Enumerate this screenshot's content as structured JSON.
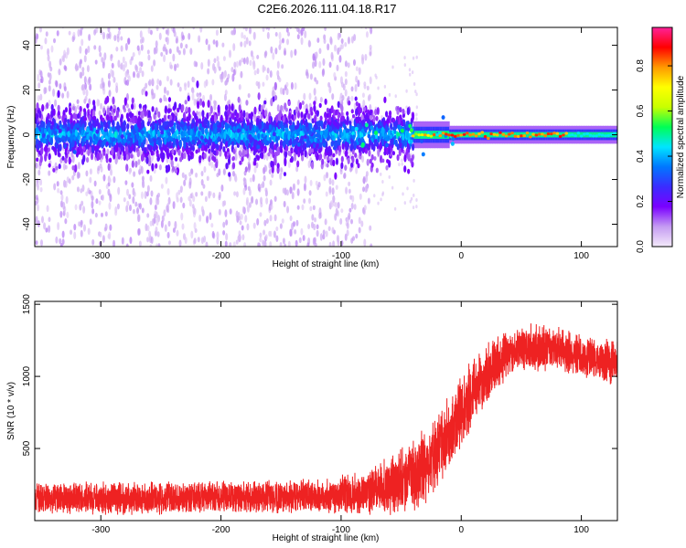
{
  "title": "C2E6.2026.111.04.18.R17",
  "chart_data": [
    {
      "type": "heatmap",
      "xlabel": "Height of straight line (km)",
      "ylabel": "Frequency (Hz)",
      "xlim": [
        -355,
        130
      ],
      "ylim": [
        -50,
        48
      ],
      "xticks": [
        -300,
        -200,
        -100,
        0,
        100
      ],
      "yticks": [
        -40,
        -20,
        0,
        20,
        40
      ],
      "colorbar": {
        "label": "Normalized spectral amplitude",
        "range": [
          0,
          0.97
        ],
        "ticks": [
          0.0,
          0.2,
          0.4,
          0.6,
          0.8
        ],
        "colors": [
          "#f4eafa",
          "#c59cf2",
          "#7a00ff",
          "#3b2cff",
          "#0077ff",
          "#00e5ff",
          "#00ff55",
          "#c8ff00",
          "#ffff00",
          "#ff9900",
          "#ff0000",
          "#ff2299"
        ]
      },
      "description_points": {
        "band_center_hz": 0,
        "noisy_region_km": [
          -355,
          -40
        ],
        "narrow_region_km": [
          -40,
          130
        ],
        "peak_amplitude_region_km": [
          -20,
          90
        ],
        "noise_scatter_limit_km": -75
      }
    },
    {
      "type": "line",
      "xlabel": "Height of straight line (km)",
      "ylabel": "SNR (10 * v/v)",
      "xlim": [
        -355,
        130
      ],
      "ylim": [
        0,
        1520
      ],
      "xticks": [
        -300,
        -200,
        -100,
        0,
        100
      ],
      "yticks": [
        500,
        1000,
        1500
      ],
      "series": [
        {
          "name": "SNR",
          "color": "#ee2222",
          "x": [
            -355,
            -300,
            -200,
            -120,
            -80,
            -60,
            -45,
            -30,
            -20,
            -10,
            0,
            10,
            20,
            30,
            40,
            50,
            70,
            90,
            110,
            130
          ],
          "mean": [
            150,
            155,
            160,
            165,
            190,
            240,
            300,
            380,
            480,
            600,
            760,
            880,
            1000,
            1100,
            1170,
            1200,
            1190,
            1170,
            1120,
            1100
          ],
          "spread": [
            110,
            110,
            110,
            120,
            160,
            200,
            230,
            260,
            270,
            280,
            270,
            240,
            210,
            180,
            170,
            170,
            160,
            150,
            150,
            150
          ]
        }
      ]
    }
  ]
}
